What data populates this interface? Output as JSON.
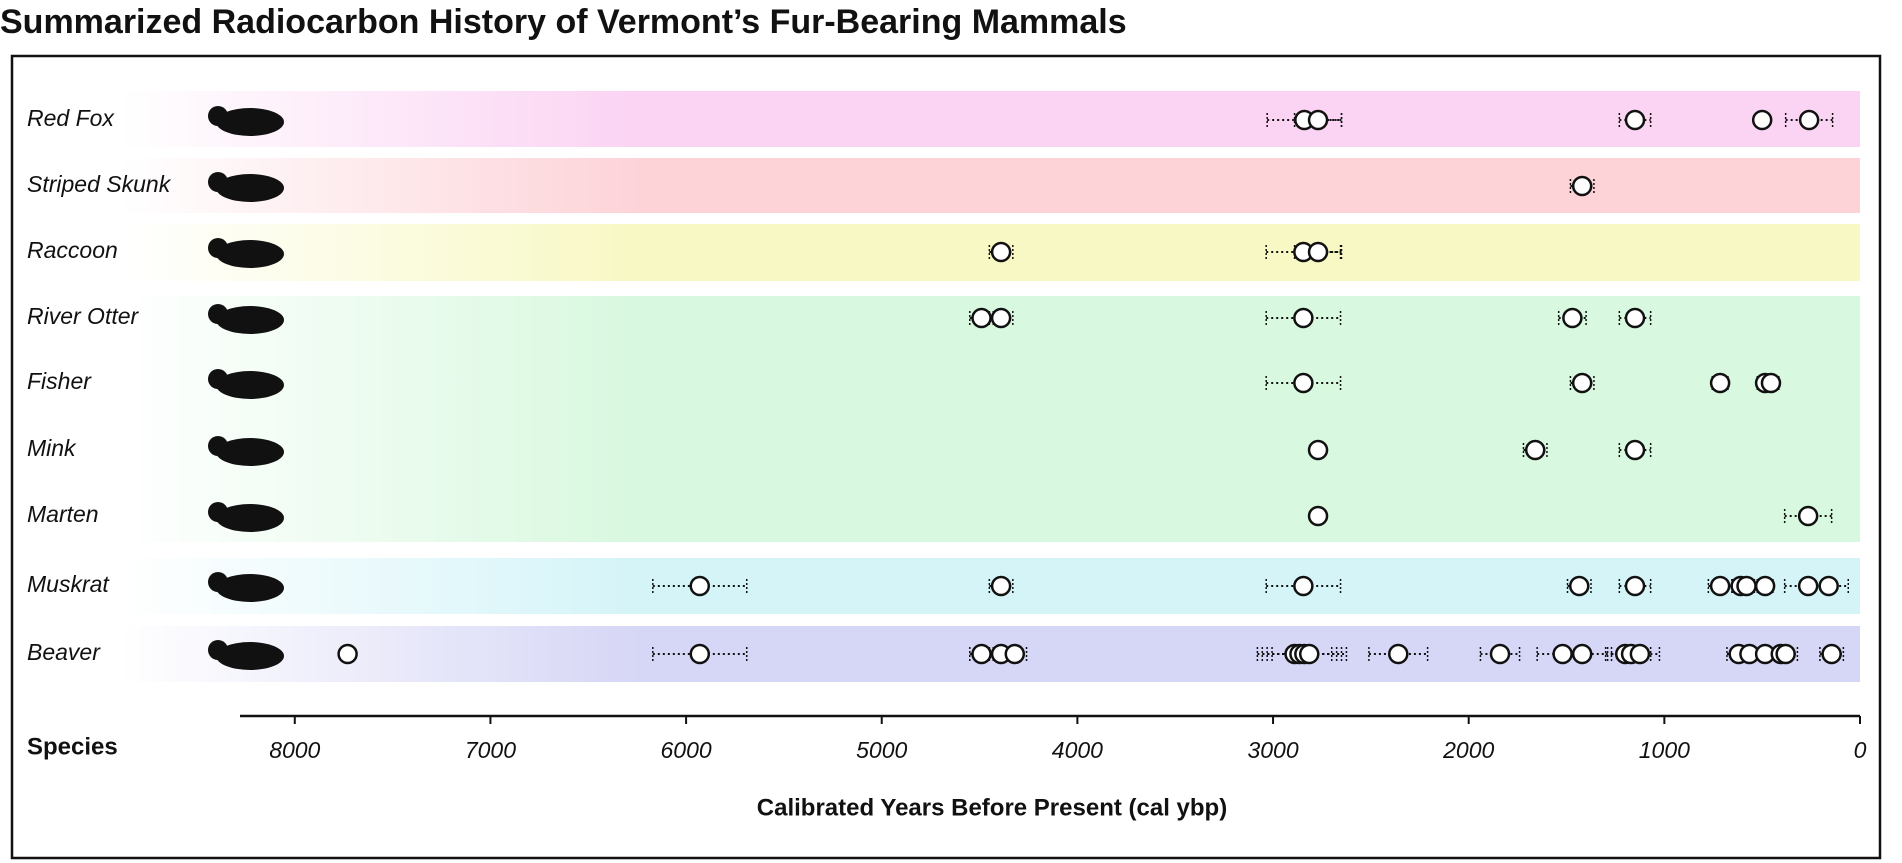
{
  "chart_data": {
    "type": "dot",
    "title": "Summarized Radiocarbon History of Vermont’s Fur-Bearing Mammals",
    "ylabel": "Species",
    "xlabel": "Calibrated Years Before Present (cal ybp)",
    "xlim": [
      8280,
      0
    ],
    "xticks": [
      8000,
      7000,
      6000,
      5000,
      4000,
      3000,
      2000,
      1000,
      0
    ],
    "series": [
      {
        "name": "Red Fox",
        "color": "#fbd3f3",
        "values": [
          2840,
          2770,
          1150,
          500,
          260
        ],
        "errors": [
          190,
          120,
          80,
          0,
          120
        ]
      },
      {
        "name": "Striped Skunk",
        "color": "#fdd3d8",
        "values": [
          1420
        ],
        "errors": [
          60
        ]
      },
      {
        "name": "Raccoon",
        "color": "#f8f8c4",
        "values": [
          4390,
          2845,
          2770
        ],
        "errors": [
          60,
          190,
          120
        ]
      },
      {
        "name": "River Otter",
        "color": "#d8f8df",
        "values": [
          4490,
          4390,
          2845,
          1470,
          1150
        ],
        "errors": [
          60,
          60,
          190,
          70,
          80
        ]
      },
      {
        "name": "Fisher",
        "color": "#d8f8df",
        "values": [
          2845,
          1420,
          715,
          485,
          455
        ],
        "errors": [
          190,
          60,
          40,
          40,
          40
        ]
      },
      {
        "name": "Mink",
        "color": "#d8f8df",
        "values": [
          2770,
          1660,
          1150
        ],
        "errors": [
          0,
          60,
          80
        ]
      },
      {
        "name": "Marten",
        "color": "#d8f8df",
        "values": [
          2770,
          265
        ],
        "errors": [
          0,
          120
        ]
      },
      {
        "name": "Muskrat",
        "color": "#d4f4f8",
        "values": [
          5930,
          4390,
          2845,
          1435,
          1150,
          715,
          610,
          580,
          485,
          265,
          160
        ],
        "errors": [
          240,
          60,
          190,
          60,
          80,
          60,
          40,
          40,
          40,
          120,
          100
        ]
      },
      {
        "name": "Beaver",
        "color": "#d6d6f6",
        "values": [
          7730,
          5930,
          4490,
          4390,
          4320,
          2890,
          2865,
          2840,
          2815,
          2360,
          1840,
          1520,
          1420,
          1200,
          1170,
          1125,
          620,
          565,
          485,
          405,
          380,
          145
        ],
        "errors": [
          0,
          240,
          60,
          60,
          60,
          190,
          190,
          190,
          190,
          150,
          100,
          130,
          130,
          100,
          100,
          100,
          60,
          60,
          60,
          60,
          60,
          60
        ]
      }
    ]
  }
}
